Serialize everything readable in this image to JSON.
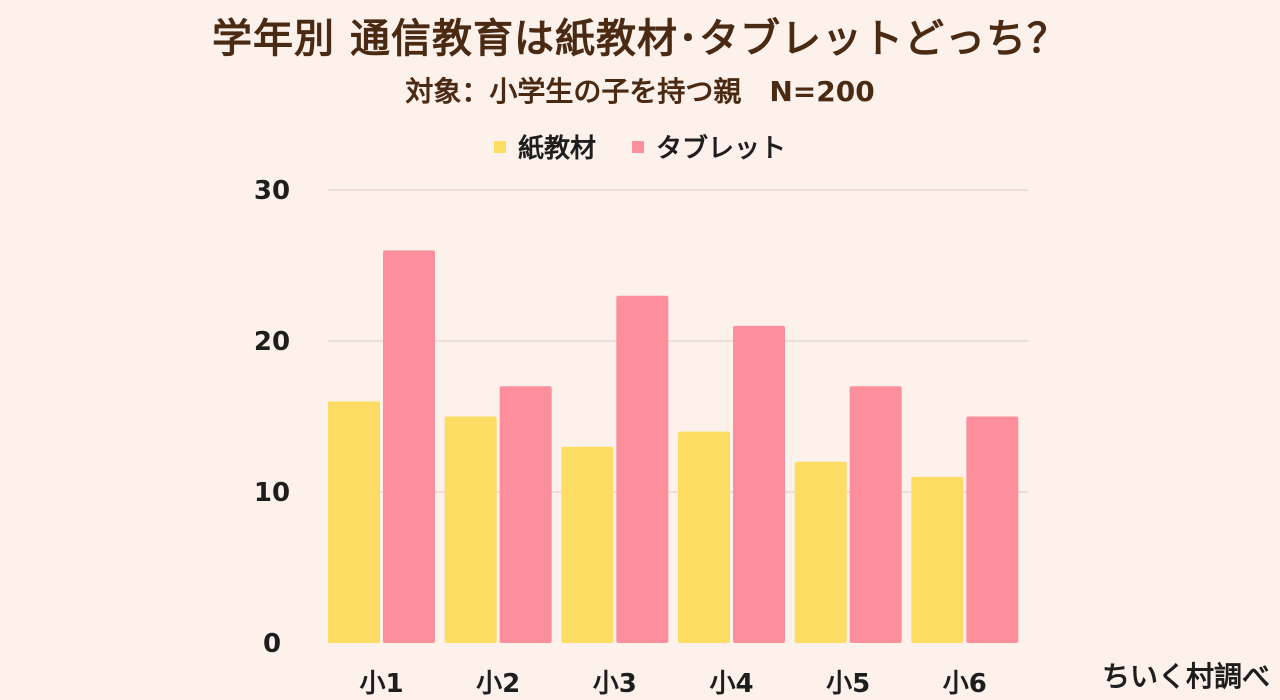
{
  "colors": {
    "background": "#fdf1ec",
    "paper": "#fcdc62",
    "tablet": "#fd8e9c",
    "grid": "#e3c9c2",
    "text": "#4a2a12"
  },
  "chart_data": {
    "type": "bar",
    "title": "学年別  通信教育は紙教材･タブレットどっち？",
    "subtitle": "対象：小学生の子を持つ親　N=200",
    "categories": [
      "小1",
      "小2",
      "小3",
      "小4",
      "小5",
      "小6"
    ],
    "series": [
      {
        "name": "紙教材",
        "values": [
          16,
          15,
          13,
          14,
          12,
          11
        ],
        "color": "#fcdc62"
      },
      {
        "name": "タブレット",
        "values": [
          26,
          17,
          23,
          21,
          17,
          15
        ],
        "color": "#fd8e9c"
      }
    ],
    "yticks": [
      "0",
      "10",
      "20",
      "30"
    ],
    "ylim": [
      0,
      30
    ],
    "grid": true,
    "legend_position": "top-center",
    "source": "ちいく村調べ"
  }
}
